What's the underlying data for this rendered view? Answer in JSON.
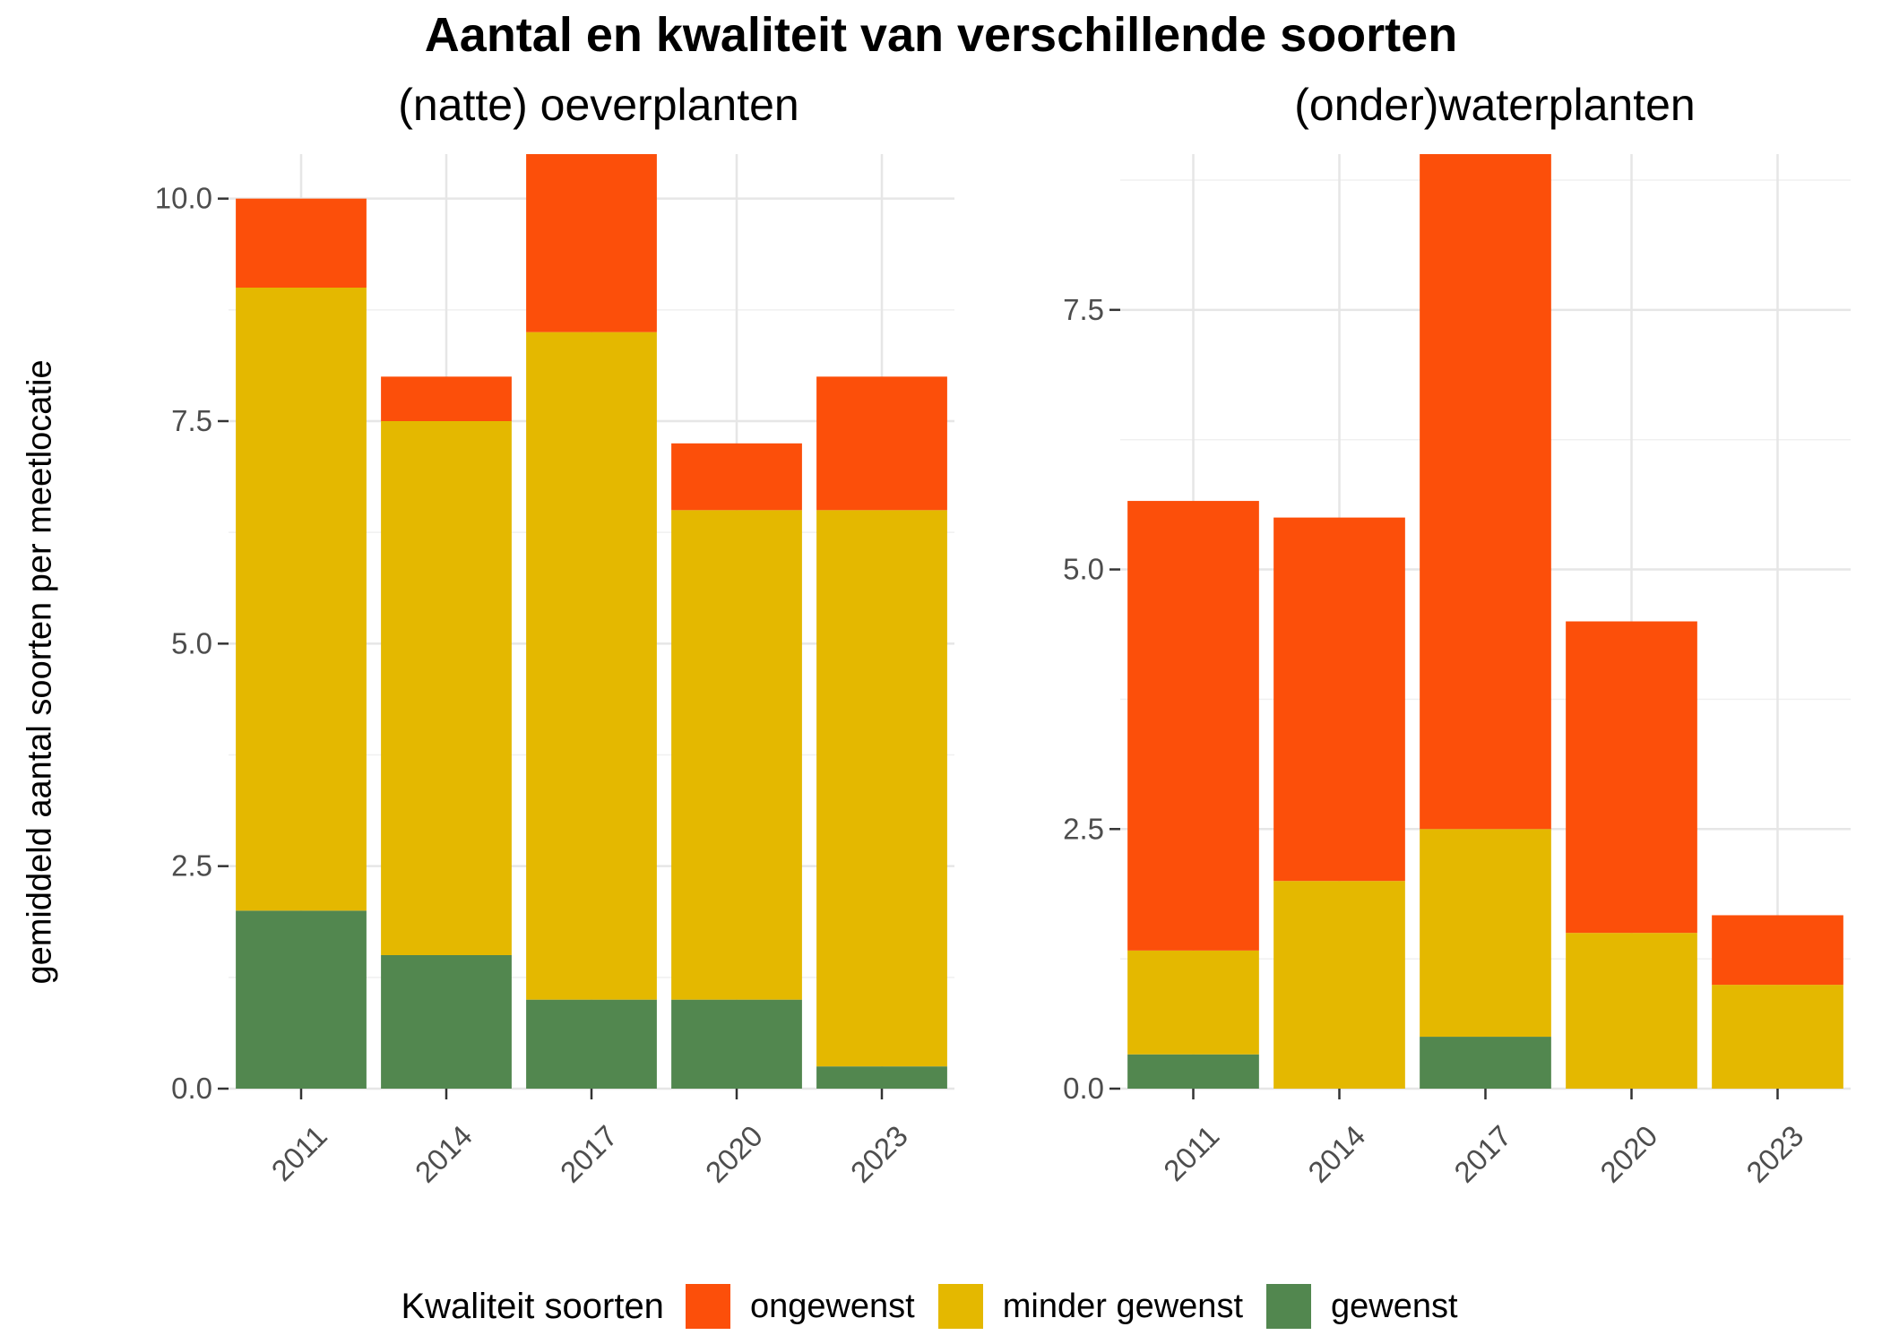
{
  "chart_data": {
    "title": "Aantal en kwaliteit van verschillende soorten",
    "ylabel": "gemiddeld aantal soorten per meetlocatie",
    "legend": {
      "title": "Kwaliteit soorten",
      "position": "bottom",
      "entries": [
        {
          "name": "ongewenst",
          "color": "#fc4f0a"
        },
        {
          "name": "minder gewenst",
          "color": "#e4b800"
        },
        {
          "name": "gewenst",
          "color": "#52874f"
        }
      ]
    },
    "grid": true,
    "panels": [
      {
        "type": "bar",
        "stacked": true,
        "title": "(natte) oeverplanten",
        "categories": [
          "2011",
          "2014",
          "2017",
          "2020",
          "2023"
        ],
        "ylim": [
          0,
          10.5
        ],
        "yticks": [
          0,
          2.5,
          5,
          7.5,
          10
        ],
        "ytick_labels": [
          "0.0",
          "2.5",
          "5.0",
          "7.5",
          "10.0"
        ],
        "series": [
          {
            "name": "gewenst",
            "color": "#52874f",
            "values": [
              2,
              1.5,
              1,
              1,
              0.25
            ]
          },
          {
            "name": "minder gewenst",
            "color": "#e4b800",
            "values": [
              7,
              6,
              7.5,
              5.5,
              6.25
            ]
          },
          {
            "name": "ongewenst",
            "color": "#fc4f0a",
            "values": [
              1,
              0.5,
              2,
              0.75,
              1.5
            ]
          }
        ]
      },
      {
        "type": "bar",
        "stacked": true,
        "title": "(onder)waterplanten",
        "categories": [
          "2011",
          "2014",
          "2017",
          "2020",
          "2023"
        ],
        "ylim": [
          0,
          9
        ],
        "yticks": [
          0,
          2.5,
          5,
          7.5
        ],
        "ytick_labels": [
          "0.0",
          "2.5",
          "5.0",
          "7.5"
        ],
        "series": [
          {
            "name": "gewenst",
            "color": "#52874f",
            "values": [
              0.33,
              0,
              0.5,
              0,
              0
            ]
          },
          {
            "name": "minder gewenst",
            "color": "#e4b800",
            "values": [
              1,
              2,
              2,
              1.5,
              1
            ]
          },
          {
            "name": "ongewenst",
            "color": "#fc4f0a",
            "values": [
              4.33,
              3.5,
              6.5,
              3,
              0.67
            ]
          }
        ]
      }
    ]
  }
}
